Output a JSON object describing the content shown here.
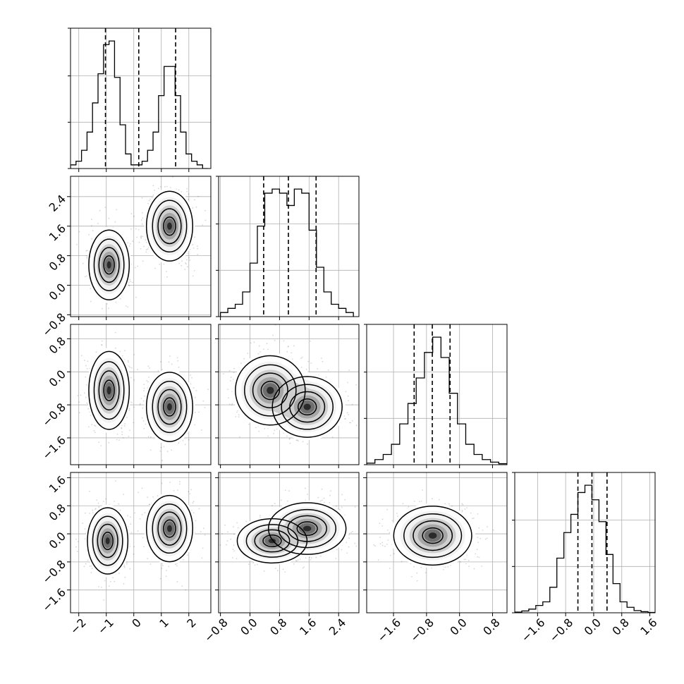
{
  "chart_data": {
    "type": "corner",
    "title": "",
    "parameters": [
      "",
      "",
      "",
      ""
    ],
    "ranges": [
      [
        -2.3,
        2.8
      ],
      [
        -0.85,
        2.95
      ],
      [
        -2.25,
        1.15
      ],
      [
        -2.25,
        1.75
      ]
    ],
    "ticks": [
      {
        "values": [
          -2,
          -1,
          0,
          1,
          2
        ],
        "labels": [
          "−2",
          "−1",
          "0",
          "1",
          "2"
        ]
      },
      {
        "values": [
          -0.8,
          0.0,
          0.8,
          1.6,
          2.4
        ],
        "labels": [
          "−0.8",
          "0.0",
          "0.8",
          "1.6",
          "2.4"
        ]
      },
      {
        "values": [
          -1.6,
          -0.8,
          0.0,
          0.8
        ],
        "labels": [
          "−1.6",
          "−0.8",
          "0.0",
          "0.8"
        ]
      },
      {
        "values": [
          -1.6,
          -0.8,
          0.0,
          0.8,
          1.6
        ],
        "labels": [
          "−1.6",
          "−0.8",
          "0.0",
          "0.8",
          "1.6"
        ]
      }
    ],
    "grid": true,
    "legend": "none",
    "quantiles": [
      [
        -1.03,
        0.18,
        1.52
      ],
      [
        0.37,
        1.04,
        1.79
      ],
      [
        -1.1,
        -0.66,
        -0.23
      ],
      [
        -0.45,
        -0.05,
        0.38
      ]
    ],
    "histograms": [
      {
        "x": [
          -2.2,
          -2.0,
          -1.8,
          -1.6,
          -1.4,
          -1.2,
          -1.0,
          -0.8,
          -0.6,
          -0.4,
          -0.2,
          0.0,
          0.2,
          0.4,
          0.6,
          0.8,
          1.0,
          1.2,
          1.4,
          1.6,
          1.8,
          2.0,
          2.2,
          2.4,
          2.6
        ],
        "y": [
          1,
          2,
          5,
          10,
          18,
          26,
          34,
          35,
          25,
          12,
          4,
          1,
          1,
          2,
          5,
          10,
          20,
          28,
          28,
          20,
          10,
          4,
          2,
          1,
          0
        ]
      },
      {
        "x": [
          -0.7,
          -0.5,
          -0.3,
          -0.1,
          0.1,
          0.3,
          0.5,
          0.7,
          0.9,
          1.1,
          1.3,
          1.5,
          1.7,
          1.9,
          2.1,
          2.3,
          2.5,
          2.7
        ],
        "y": [
          1,
          2,
          3,
          6,
          13,
          22,
          30,
          31,
          30,
          27,
          31,
          30,
          21,
          12,
          6,
          3,
          2,
          1
        ]
      },
      {
        "x": [
          -2.15,
          -1.95,
          -1.75,
          -1.55,
          -1.35,
          -1.15,
          -0.95,
          -0.75,
          -0.55,
          -0.35,
          -0.15,
          0.05,
          0.25,
          0.45,
          0.65,
          0.85,
          1.05
        ],
        "y": [
          0.3,
          1,
          2,
          4,
          8,
          12,
          17,
          22,
          25,
          21,
          14,
          8,
          4,
          2,
          1,
          0.5,
          0.2
        ]
      },
      {
        "x": [
          -2.15,
          -1.95,
          -1.75,
          -1.55,
          -1.35,
          -1.15,
          -0.95,
          -0.75,
          -0.55,
          -0.35,
          -0.15,
          0.05,
          0.25,
          0.45,
          0.65,
          0.85,
          1.05,
          1.25,
          1.45,
          1.65
        ],
        "y": [
          0.2,
          0.5,
          1,
          2,
          3,
          7,
          15,
          22,
          27,
          33,
          35,
          31,
          25,
          16,
          8,
          3,
          1.5,
          0.6,
          0.3,
          0.1
        ]
      }
    ],
    "joint_modes": [
      {
        "row": 1,
        "col": 0,
        "centers": [
          [
            -0.9,
            0.55
          ],
          [
            1.3,
            1.6
          ]
        ],
        "spread": [
          [
            0.35,
            0.45
          ],
          [
            0.4,
            0.45
          ]
        ]
      },
      {
        "row": 2,
        "col": 0,
        "centers": [
          [
            -0.9,
            -0.45
          ],
          [
            1.3,
            -0.85
          ]
        ],
        "spread": [
          [
            0.35,
            0.45
          ],
          [
            0.4,
            0.4
          ]
        ]
      },
      {
        "row": 2,
        "col": 1,
        "centers": [
          [
            0.55,
            -0.45
          ],
          [
            1.55,
            -0.85
          ]
        ],
        "spread": [
          [
            0.45,
            0.4
          ],
          [
            0.45,
            0.35
          ]
        ]
      },
      {
        "row": 3,
        "col": 0,
        "centers": [
          [
            -0.95,
            -0.2
          ],
          [
            1.3,
            0.15
          ]
        ],
        "spread": [
          [
            0.35,
            0.45
          ],
          [
            0.4,
            0.45
          ]
        ]
      },
      {
        "row": 3,
        "col": 1,
        "centers": [
          [
            0.6,
            -0.2
          ],
          [
            1.55,
            0.15
          ]
        ],
        "spread": [
          [
            0.45,
            0.3
          ],
          [
            0.5,
            0.35
          ]
        ]
      },
      {
        "row": 3,
        "col": 2,
        "centers": [
          [
            -0.65,
            -0.05
          ]
        ],
        "spread": [
          [
            0.45,
            0.4
          ]
        ]
      }
    ]
  }
}
